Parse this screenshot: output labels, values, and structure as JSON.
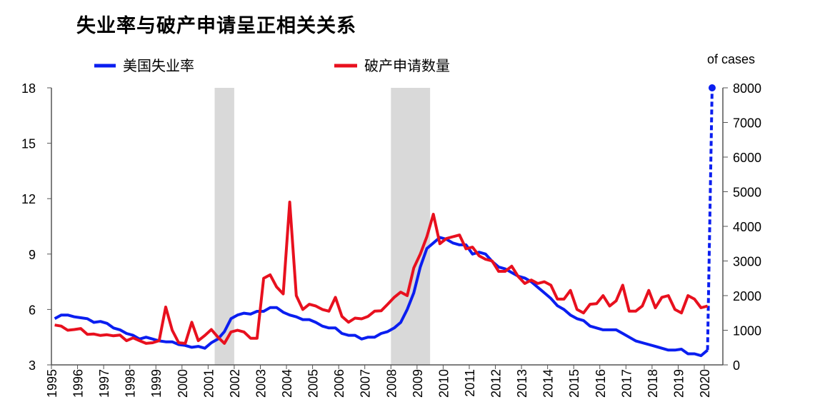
{
  "chart_data": {
    "type": "line",
    "title": "失业率与破产申请呈正相关关系",
    "right_axis_label": "of cases",
    "x_ticks": [
      "1995",
      "1996",
      "1997",
      "1998",
      "1999",
      "2000",
      "2001",
      "2002",
      "2003",
      "2004",
      "2005",
      "2006",
      "2007",
      "2008",
      "2009",
      "2010",
      "2011",
      "2012",
      "2013",
      "2014",
      "2015",
      "2016",
      "2017",
      "2018",
      "2019",
      "2020"
    ],
    "left_axis": {
      "ylim": [
        3,
        18
      ],
      "ticks": [
        "3",
        "6",
        "9",
        "12",
        "15",
        "18"
      ]
    },
    "right_axis": {
      "ylim": [
        0,
        8000
      ],
      "ticks": [
        "0",
        "1000",
        "2000",
        "3000",
        "4000",
        "5000",
        "6000",
        "7000",
        "8000"
      ]
    },
    "grid": false,
    "legend_position": "top",
    "recessions": [
      [
        2001.25,
        2002.0
      ],
      [
        2008.0,
        2009.5
      ]
    ],
    "recession_color": "#d9d9d9",
    "x_start_year": 1995,
    "x_frequency": "quarterly",
    "series": [
      {
        "name": "美国失业率",
        "axis": "left",
        "color": "#0a1ef0",
        "values": [
          5.5,
          5.7,
          5.7,
          5.6,
          5.55,
          5.5,
          5.3,
          5.35,
          5.25,
          5.0,
          4.9,
          4.7,
          4.6,
          4.4,
          4.5,
          4.4,
          4.3,
          4.25,
          4.25,
          4.1,
          4.05,
          3.95,
          4.0,
          3.9,
          4.2,
          4.4,
          4.8,
          5.5,
          5.7,
          5.8,
          5.75,
          5.9,
          5.9,
          6.1,
          6.1,
          5.85,
          5.7,
          5.6,
          5.45,
          5.45,
          5.3,
          5.1,
          5.0,
          5.0,
          4.7,
          4.6,
          4.6,
          4.4,
          4.5,
          4.5,
          4.7,
          4.8,
          5.0,
          5.3,
          6.0,
          6.9,
          8.3,
          9.3,
          9.6,
          9.9,
          9.8,
          9.6,
          9.5,
          9.5,
          9.0,
          9.1,
          9.0,
          8.6,
          8.3,
          8.2,
          8.0,
          7.8,
          7.7,
          7.5,
          7.2,
          6.9,
          6.6,
          6.2,
          6.0,
          5.7,
          5.5,
          5.4,
          5.1,
          5.0,
          4.9,
          4.9,
          4.9,
          4.7,
          4.5,
          4.3,
          4.2,
          4.1,
          4.0,
          3.9,
          3.8,
          3.8,
          3.85,
          3.6,
          3.6,
          3.5,
          3.8
        ],
        "projection": {
          "from": [
            2020.0,
            3.8
          ],
          "to": [
            2020.3,
            18
          ],
          "style": "dashed"
        }
      },
      {
        "name": "破产申请数量",
        "axis": "right",
        "color": "#e8101e",
        "values": [
          1150,
          1120,
          1000,
          1020,
          1050,
          880,
          890,
          850,
          870,
          840,
          860,
          700,
          780,
          700,
          620,
          640,
          700,
          1670,
          1000,
          640,
          620,
          1230,
          700,
          850,
          1020,
          800,
          620,
          950,
          1000,
          950,
          770,
          770,
          2500,
          2600,
          2250,
          2050,
          4700,
          2000,
          1600,
          1750,
          1700,
          1600,
          1550,
          1950,
          1400,
          1230,
          1350,
          1330,
          1400,
          1550,
          1560,
          1750,
          1950,
          2100,
          2000,
          2800,
          3200,
          3700,
          4350,
          3500,
          3650,
          3700,
          3750,
          3350,
          3400,
          3150,
          3050,
          3000,
          2700,
          2700,
          2850,
          2550,
          2350,
          2450,
          2350,
          2400,
          2300,
          1900,
          1900,
          2150,
          1600,
          1500,
          1750,
          1770,
          2000,
          1700,
          1850,
          2300,
          1550,
          1550,
          1700,
          2150,
          1650,
          1950,
          2000,
          1600,
          1500,
          2000,
          1900,
          1650,
          1700
        ]
      }
    ]
  }
}
